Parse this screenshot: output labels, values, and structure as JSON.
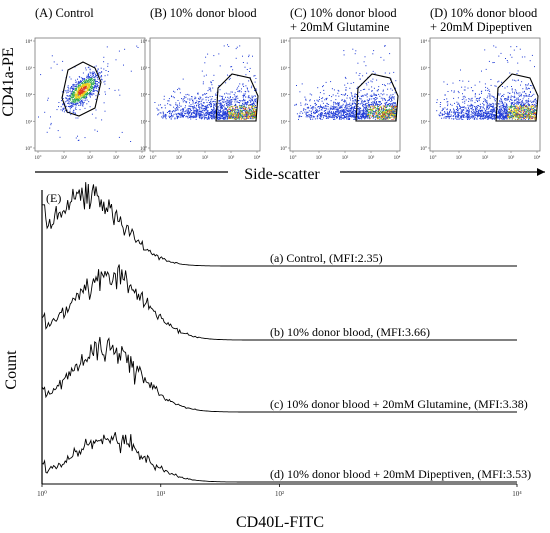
{
  "chart_data": [
    {
      "type": "scatter",
      "panels": [
        {
          "label": "(A) Control",
          "cluster": "center"
        },
        {
          "label": "(B) 10% donor blood",
          "cluster": "right-low"
        },
        {
          "label": "(C) 10% donor blood\n+ 20mM Glutamine",
          "cluster": "right-low"
        },
        {
          "label": "(D) 10% donor blood\n+ 20mM Dipeptiven",
          "cluster": "right-low"
        }
      ],
      "xlabel": "Side-scatter",
      "ylabel": "CD41a-PE",
      "x_scale": "log",
      "y_scale": "log",
      "xlim": [
        10,
        10000
      ],
      "ylim": [
        10,
        10000
      ],
      "x_ticks": [
        "10°",
        "10¹",
        "10²",
        "10³",
        "10⁴"
      ],
      "y_ticks": [
        "10°",
        "10¹",
        "10²",
        "10³",
        "10⁴"
      ],
      "density_colors": [
        "#1f3bd6",
        "#2fa84f",
        "#e8d21d",
        "#e0381c"
      ]
    },
    {
      "type": "line",
      "panel_label": "(E)",
      "xlabel": "CD40L-FITC",
      "ylabel": "Count",
      "x_scale": "log",
      "xlim": [
        1,
        10000
      ],
      "x_ticks": [
        "10⁰",
        "10¹",
        "10²",
        "10⁴"
      ],
      "series": [
        {
          "name": "(a) Control, (MFI:2.35)",
          "peak_x": 2.35,
          "peak_height": 1.0
        },
        {
          "name": "(b) 10% donor blood, (MFI:3.66)",
          "peak_x": 3.66,
          "peak_height": 0.9
        },
        {
          "name": "(c) 10% donor blood + 20mM Glutamine, (MFI:3.38)",
          "peak_x": 3.38,
          "peak_height": 0.88
        },
        {
          "name": "(d) 10% donor blood + 20mM Dipeptiven, (MFI:3.53)",
          "peak_x": 3.53,
          "peak_height": 0.6
        }
      ]
    }
  ]
}
